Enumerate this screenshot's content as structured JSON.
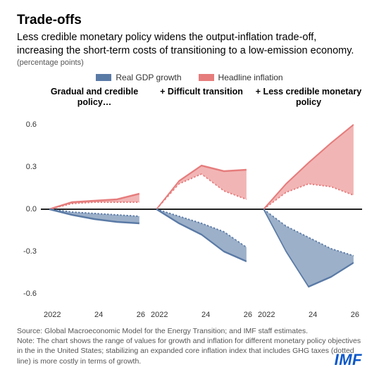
{
  "title": "Trade-offs",
  "subtitle": "Less credible monetary policy widens the output-inflation trade-off, increasing the short-term costs of transitioning to a low-emission economy.",
  "unit_label": "(percentage points)",
  "legend": {
    "gdp": {
      "label": "Real GDP growth",
      "color": "#5a7aa6"
    },
    "inflation": {
      "label": "Headline inflation",
      "color": "#e67c7c"
    }
  },
  "chart": {
    "type": "area-range",
    "ylim": [
      -0.7,
      0.7
    ],
    "yticks": [
      0.6,
      0.3,
      0.0,
      -0.3,
      -0.6
    ],
    "xvalues": [
      2022,
      2023,
      2024,
      2025,
      2026
    ],
    "xlabels": [
      "2022",
      "24",
      "26"
    ],
    "gdp_color": "#5a7aa6",
    "gdp_fill": "#8ba2c0",
    "inflation_color": "#e67c7c",
    "inflation_fill": "#f0a8a8",
    "zero_line_color": "#000000",
    "grid_color": "#d0d0d0",
    "panels": [
      {
        "title": "Gradual and credible policy…",
        "inflation_upper": [
          0.0,
          0.05,
          0.06,
          0.07,
          0.11
        ],
        "inflation_lower": [
          0.0,
          0.04,
          0.05,
          0.05,
          0.05
        ],
        "gdp_upper": [
          0.0,
          -0.02,
          -0.03,
          -0.04,
          -0.05
        ],
        "gdp_lower": [
          0.0,
          -0.04,
          -0.07,
          -0.09,
          -0.1
        ]
      },
      {
        "title": "+ Difficult transition",
        "inflation_upper": [
          0.0,
          0.2,
          0.31,
          0.27,
          0.28
        ],
        "inflation_lower": [
          0.0,
          0.18,
          0.25,
          0.13,
          0.07
        ],
        "gdp_upper": [
          0.0,
          -0.05,
          -0.1,
          -0.16,
          -0.27
        ],
        "gdp_lower": [
          0.0,
          -0.1,
          -0.18,
          -0.3,
          -0.37
        ]
      },
      {
        "title": "+ Less credible monetary policy",
        "inflation_upper": [
          0.0,
          0.18,
          0.33,
          0.47,
          0.6
        ],
        "inflation_lower": [
          0.0,
          0.12,
          0.18,
          0.16,
          0.1
        ],
        "gdp_upper": [
          0.0,
          -0.12,
          -0.2,
          -0.28,
          -0.33
        ],
        "gdp_lower": [
          0.0,
          -0.3,
          -0.55,
          -0.48,
          -0.38
        ]
      }
    ]
  },
  "source_text": "Source: Global Macroeconomic Model for the Energy Transition; and IMF staff estimates.\nNote: The chart shows the range of values for growth and inflation for different monetary policy objectives in the in the United States; stabilizing an expanded core inflation index that includes GHG taxes (dotted line) is more costly in terms of growth.",
  "logo_text": "IMF",
  "logo_color": "#0b57c9"
}
